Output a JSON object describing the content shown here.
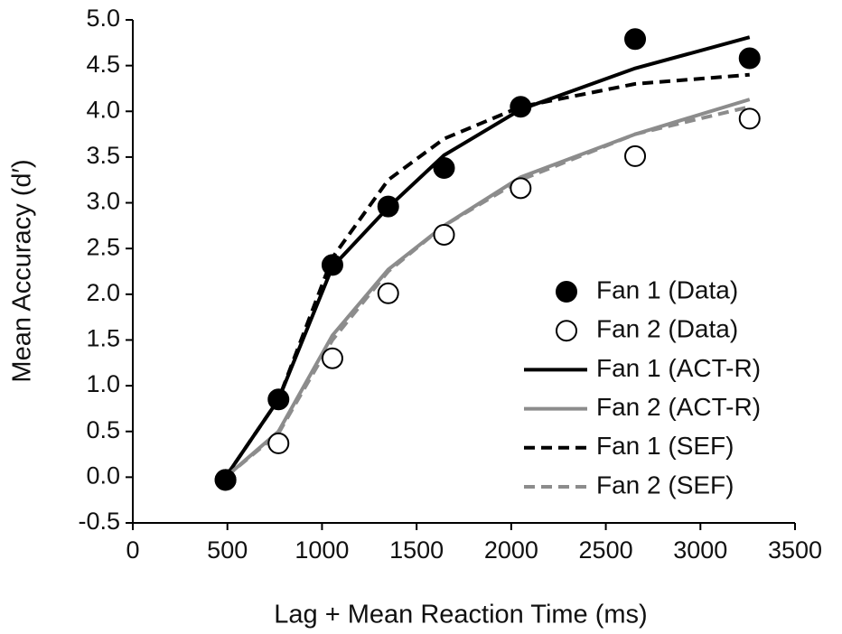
{
  "chart_data": {
    "type": "line",
    "x_label": "Lag + Mean Reaction Time (ms)",
    "y_label": "Mean Accuracy (d′)",
    "x": [
      490,
      770,
      1055,
      1350,
      1645,
      2050,
      2655,
      3260
    ],
    "series": [
      {
        "name": "Fan 1 (Data)",
        "color": "#000000",
        "style": "filled-marker",
        "values": [
          -0.03,
          0.85,
          2.32,
          2.96,
          3.38,
          4.05,
          4.79,
          4.58
        ]
      },
      {
        "name": "Fan 2 (Data)",
        "color": "#000000",
        "style": "open-marker",
        "values": [
          -0.03,
          0.37,
          1.3,
          2.01,
          2.65,
          3.16,
          3.51,
          3.92
        ]
      },
      {
        "name": "Fan 1 (ACT-R)",
        "color": "#000000",
        "style": "solid-line",
        "values": [
          0.0,
          0.85,
          2.3,
          2.95,
          3.52,
          4.02,
          4.47,
          4.81
        ]
      },
      {
        "name": "Fan 2 (ACT-R)",
        "color": "#8c8c8c",
        "style": "solid-line",
        "values": [
          0.0,
          0.5,
          1.55,
          2.27,
          2.75,
          3.28,
          3.75,
          4.13
        ]
      },
      {
        "name": "Fan 1 (SEF)",
        "color": "#000000",
        "style": "dashed-line",
        "values": [
          0.0,
          0.85,
          2.4,
          3.25,
          3.7,
          4.05,
          4.3,
          4.4
        ]
      },
      {
        "name": "Fan 2 (SEF)",
        "color": "#8c8c8c",
        "style": "dashed-line",
        "values": [
          0.0,
          0.48,
          1.5,
          2.25,
          2.75,
          3.25,
          3.75,
          4.05
        ]
      }
    ],
    "xlim": [
      0,
      3500
    ],
    "xticks": [
      0,
      500,
      1000,
      1500,
      2000,
      2500,
      3000,
      3500
    ],
    "ylim": [
      -0.5,
      5.0
    ],
    "yticks": [
      {
        "value": -0.5,
        "label": "-0.5"
      },
      {
        "value": 0,
        "label": "0.0"
      },
      {
        "value": 0.5,
        "label": "0.5"
      },
      {
        "value": 1,
        "label": "1.0"
      },
      {
        "value": 1.5,
        "label": "1.5"
      },
      {
        "value": 2,
        "label": "2.0"
      },
      {
        "value": 2.5,
        "label": "2.5"
      },
      {
        "value": 3,
        "label": "3.0"
      },
      {
        "value": 3.5,
        "label": "3.5"
      },
      {
        "value": 4,
        "label": "4.0"
      },
      {
        "value": 4.5,
        "label": "4.5"
      },
      {
        "value": 5,
        "label": "5.0"
      }
    ],
    "legend": "right"
  }
}
